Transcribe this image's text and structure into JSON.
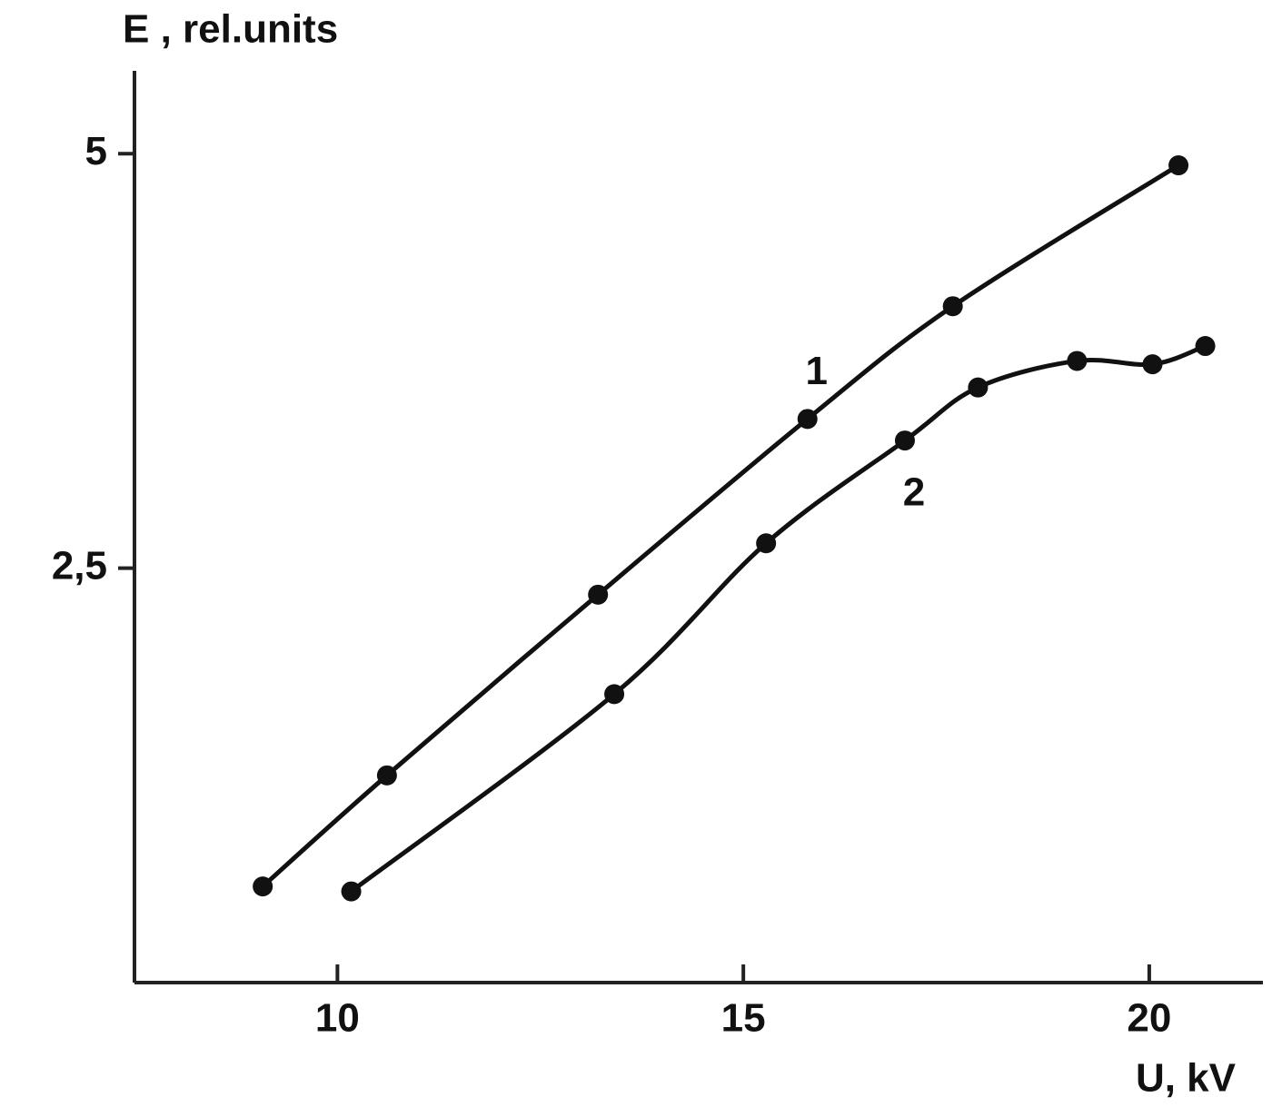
{
  "chart_data": {
    "type": "line",
    "y_label": "E , rel.units",
    "x_label": "U, kV",
    "xlim": [
      7.5,
      21.4
    ],
    "ylim": [
      0,
      5.5
    ],
    "xticks": [
      10,
      15,
      20
    ],
    "yticks": [
      {
        "value": 2.5,
        "label": "2,5"
      },
      5
    ],
    "series": [
      {
        "name": "1",
        "color": "#111111",
        "x": [
          9.08,
          10.61,
          13.21,
          15.79,
          17.58,
          20.36
        ],
        "values": [
          0.58,
          1.25,
          2.34,
          3.4,
          4.08,
          4.93
        ]
      },
      {
        "name": "2",
        "color": "#111111",
        "x": [
          10.17,
          13.41,
          15.28,
          16.99,
          17.89,
          19.11,
          20.04,
          20.69
        ],
        "values": [
          0.55,
          1.74,
          2.65,
          3.27,
          3.59,
          3.75,
          3.73,
          3.84
        ]
      }
    ]
  }
}
